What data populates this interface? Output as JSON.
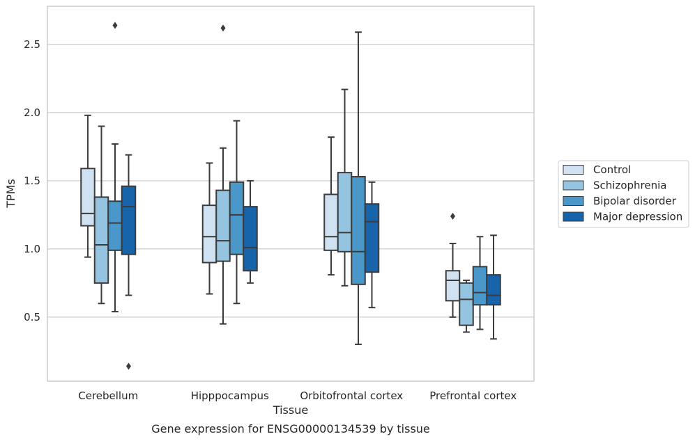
{
  "chart_data": {
    "type": "box",
    "xlabel": "Tissue",
    "ylabel": "TPMs",
    "caption": "Gene expression for ENSG00000134539 by tissue",
    "categories": [
      "Cerebellum",
      "Hipppocampus",
      "Orbitofrontal cortex",
      "Prefrontal cortex"
    ],
    "ylim": [
      0.03,
      2.78
    ],
    "yticks": [
      0.5,
      1.0,
      1.5,
      2.0,
      2.5
    ],
    "ytick_labels": [
      "0.5",
      "1.0",
      "1.5",
      "2.0",
      "2.5"
    ],
    "grid": "horizontal",
    "legend_position": "right",
    "series": [
      {
        "name": "Control",
        "color": "#d0e1f2",
        "boxes": [
          {
            "whislo": 0.94,
            "q1": 1.17,
            "med": 1.26,
            "q3": 1.59,
            "whishi": 1.98,
            "fliers": []
          },
          {
            "whislo": 0.67,
            "q1": 0.9,
            "med": 1.09,
            "q3": 1.32,
            "whishi": 1.63,
            "fliers": []
          },
          {
            "whislo": 0.81,
            "q1": 0.99,
            "med": 1.09,
            "q3": 1.4,
            "whishi": 1.82,
            "fliers": []
          },
          {
            "whislo": 0.5,
            "q1": 0.62,
            "med": 0.77,
            "q3": 0.84,
            "whishi": 1.04,
            "fliers": [
              1.24
            ]
          }
        ]
      },
      {
        "name": "Schizophrenia",
        "color": "#94c4df",
        "boxes": [
          {
            "whislo": 0.6,
            "q1": 0.75,
            "med": 1.03,
            "q3": 1.38,
            "whishi": 1.9,
            "fliers": []
          },
          {
            "whislo": 0.45,
            "q1": 0.91,
            "med": 1.06,
            "q3": 1.43,
            "whishi": 1.74,
            "fliers": [
              2.62
            ]
          },
          {
            "whislo": 0.73,
            "q1": 0.98,
            "med": 1.12,
            "q3": 1.56,
            "whishi": 2.17,
            "fliers": []
          },
          {
            "whislo": 0.39,
            "q1": 0.44,
            "med": 0.63,
            "q3": 0.75,
            "whishi": 0.77,
            "fliers": []
          }
        ]
      },
      {
        "name": "Bipolar disorder",
        "color": "#4a98c9",
        "boxes": [
          {
            "whislo": 0.54,
            "q1": 0.99,
            "med": 1.19,
            "q3": 1.35,
            "whishi": 1.77,
            "fliers": [
              2.64
            ]
          },
          {
            "whislo": 0.6,
            "q1": 0.96,
            "med": 1.25,
            "q3": 1.49,
            "whishi": 1.94,
            "fliers": []
          },
          {
            "whislo": 0.3,
            "q1": 0.74,
            "med": 0.98,
            "q3": 1.53,
            "whishi": 2.59,
            "fliers": []
          },
          {
            "whislo": 0.41,
            "q1": 0.59,
            "med": 0.68,
            "q3": 0.87,
            "whishi": 1.09,
            "fliers": []
          }
        ]
      },
      {
        "name": "Major depression",
        "color": "#1764ab",
        "boxes": [
          {
            "whislo": 0.66,
            "q1": 0.96,
            "med": 1.31,
            "q3": 1.46,
            "whishi": 1.69,
            "fliers": [
              0.14
            ]
          },
          {
            "whislo": 0.75,
            "q1": 0.84,
            "med": 1.01,
            "q3": 1.31,
            "whishi": 1.5,
            "fliers": []
          },
          {
            "whislo": 0.57,
            "q1": 0.83,
            "med": 1.2,
            "q3": 1.33,
            "whishi": 1.49,
            "fliers": []
          },
          {
            "whislo": 0.34,
            "q1": 0.59,
            "med": 0.66,
            "q3": 0.81,
            "whishi": 1.1,
            "fliers": []
          }
        ]
      }
    ]
  }
}
